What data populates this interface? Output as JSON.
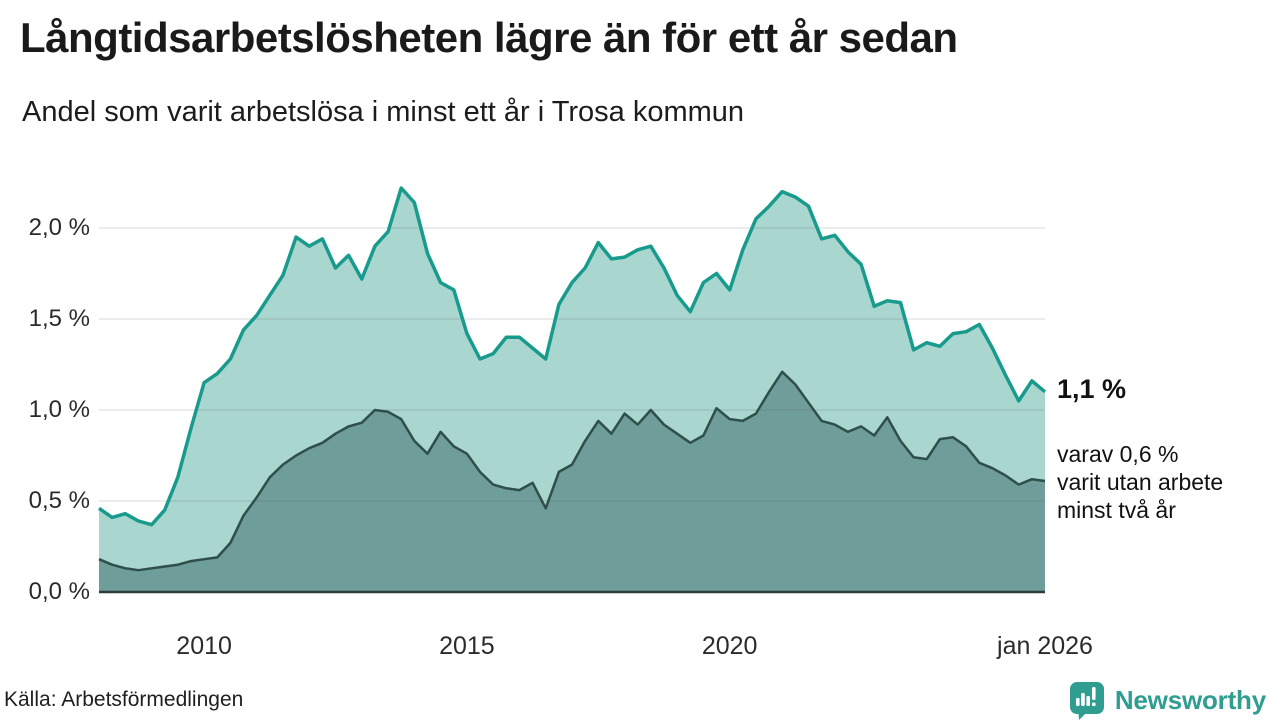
{
  "header": {
    "title": "Långtidsarbetslösheten lägre än för ett år sedan",
    "subtitle": "Andel som varit arbetslösa i minst ett år i Trosa kommun"
  },
  "annotations": {
    "end_value": "1,1 %",
    "end_note": "varav 0,6 %\nvarit utan arbete\nminst två år"
  },
  "footer": {
    "source": "Källa: Arbetsförmedlingen",
    "brand": "Newsworthy",
    "brand_color": "#2f9e91",
    "brand_icon": "bar-chart-exclamation-bubble-icon"
  },
  "chart_data": {
    "type": "area",
    "title": "Långtidsarbetslösheten lägre än för ett år sedan",
    "subtitle": "Andel som varit arbetslösa i minst ett år i Trosa kommun",
    "unit": "%",
    "xlim": [
      2008.0,
      2026.0
    ],
    "ylim": [
      0,
      2.3
    ],
    "grid": "horizontal",
    "legend": "none",
    "x": [
      2008.0,
      2008.25,
      2008.5,
      2008.75,
      2009.0,
      2009.25,
      2009.5,
      2009.75,
      2010.0,
      2010.25,
      2010.5,
      2010.75,
      2011.0,
      2011.25,
      2011.5,
      2011.75,
      2012.0,
      2012.25,
      2012.5,
      2012.75,
      2013.0,
      2013.25,
      2013.5,
      2013.75,
      2014.0,
      2014.25,
      2014.5,
      2014.75,
      2015.0,
      2015.25,
      2015.5,
      2015.75,
      2016.0,
      2016.25,
      2016.5,
      2016.75,
      2017.0,
      2017.25,
      2017.5,
      2017.75,
      2018.0,
      2018.25,
      2018.5,
      2018.75,
      2019.0,
      2019.25,
      2019.5,
      2019.75,
      2020.0,
      2020.25,
      2020.5,
      2020.75,
      2021.0,
      2021.25,
      2021.5,
      2021.75,
      2022.0,
      2022.25,
      2022.5,
      2022.75,
      2023.0,
      2023.25,
      2023.5,
      2023.75,
      2024.0,
      2024.25,
      2024.5,
      2024.75,
      2025.0,
      2025.25,
      2025.5,
      2025.75,
      2026.0
    ],
    "series": [
      {
        "name": "arbetslösa minst ett år",
        "line_color": "#189b8c",
        "fill_color": "#a9d6cf",
        "end_label": "1,1 %",
        "values": [
          0.46,
          0.41,
          0.43,
          0.39,
          0.37,
          0.45,
          0.63,
          0.9,
          1.15,
          1.2,
          1.28,
          1.44,
          1.52,
          1.63,
          1.74,
          1.95,
          1.9,
          1.94,
          1.78,
          1.85,
          1.72,
          1.9,
          1.98,
          2.22,
          2.14,
          1.86,
          1.7,
          1.66,
          1.42,
          1.28,
          1.31,
          1.4,
          1.4,
          1.34,
          1.28,
          1.58,
          1.7,
          1.78,
          1.92,
          1.83,
          1.84,
          1.88,
          1.9,
          1.78,
          1.63,
          1.54,
          1.7,
          1.75,
          1.66,
          1.88,
          2.05,
          2.12,
          2.2,
          2.17,
          2.12,
          1.94,
          1.96,
          1.87,
          1.8,
          1.57,
          1.6,
          1.59,
          1.33,
          1.37,
          1.35,
          1.42,
          1.43,
          1.47,
          1.34,
          1.19,
          1.05,
          1.16,
          1.1
        ]
      },
      {
        "name": "varav utan arbete minst två år",
        "line_color": "#2e4f4b",
        "fill_color": "#6f9d99",
        "end_label": "0,6 %",
        "values": [
          0.18,
          0.15,
          0.13,
          0.12,
          0.13,
          0.14,
          0.15,
          0.17,
          0.18,
          0.19,
          0.27,
          0.42,
          0.52,
          0.63,
          0.7,
          0.75,
          0.79,
          0.82,
          0.87,
          0.91,
          0.93,
          1.0,
          0.99,
          0.95,
          0.83,
          0.76,
          0.88,
          0.8,
          0.76,
          0.66,
          0.59,
          0.57,
          0.56,
          0.6,
          0.46,
          0.66,
          0.7,
          0.83,
          0.94,
          0.87,
          0.98,
          0.92,
          1.0,
          0.92,
          0.87,
          0.82,
          0.86,
          1.01,
          0.95,
          0.94,
          0.98,
          1.1,
          1.21,
          1.14,
          1.04,
          0.94,
          0.92,
          0.88,
          0.91,
          0.86,
          0.96,
          0.83,
          0.74,
          0.73,
          0.84,
          0.85,
          0.8,
          0.71,
          0.68,
          0.64,
          0.59,
          0.62,
          0.61
        ]
      }
    ],
    "yticks": [
      {
        "label": "0,0 %",
        "value": 0.0
      },
      {
        "label": "0,5 %",
        "value": 0.5
      },
      {
        "label": "1,0 %",
        "value": 1.0
      },
      {
        "label": "1,5 %",
        "value": 1.5
      },
      {
        "label": "2,0 %",
        "value": 2.0
      }
    ],
    "xticks": [
      {
        "label": "2010",
        "year": 2010.0
      },
      {
        "label": "2015",
        "year": 2015.0
      },
      {
        "label": "2020",
        "year": 2020.0
      },
      {
        "label": "jan 2026",
        "year": 2026.0
      }
    ],
    "gridline_color": "rgba(90,95,105,0.16)",
    "baseline_color": "#2e3c3a"
  }
}
